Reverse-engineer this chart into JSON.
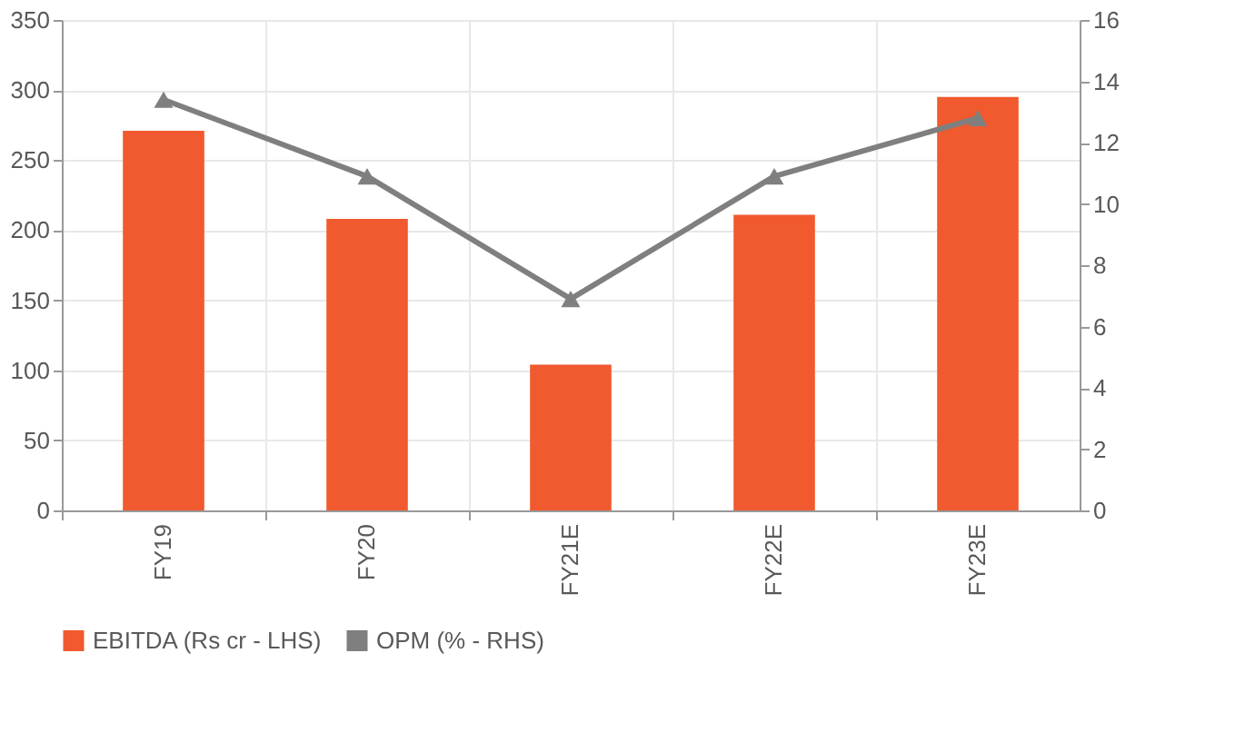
{
  "chart_data": {
    "type": "bar",
    "categories": [
      "FY19",
      "FY20",
      "FY21E",
      "FY22E",
      "FY23E"
    ],
    "series": [
      {
        "name": "EBITDA (Rs cr - LHS)",
        "color": "#f05a2e",
        "values": [
          271,
          208,
          104,
          211,
          295
        ]
      },
      {
        "name": "OPM (% - RHS)",
        "type": "line",
        "axis": "y2",
        "color": "#7f7f7f",
        "marker": "triangle",
        "values": [
          13.4,
          10.9,
          6.9,
          10.9,
          12.8
        ]
      }
    ],
    "ylim": [
      0,
      350
    ],
    "yticks": [
      0,
      50,
      100,
      150,
      200,
      250,
      300,
      350
    ],
    "y2lim": [
      0,
      16
    ],
    "y2ticks": [
      0,
      2,
      4,
      6,
      8,
      10,
      12,
      14,
      16
    ],
    "grid": true,
    "legend": "bottom"
  }
}
